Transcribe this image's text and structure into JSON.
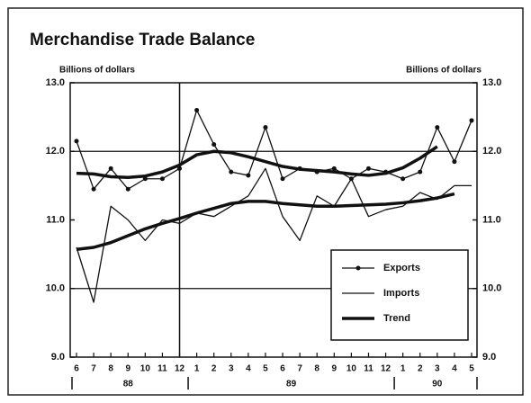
{
  "chart_data": {
    "type": "line",
    "title": "Merchandise Trade Balance",
    "y_label": "Billions of dollars",
    "y2_label": "Billions of dollars",
    "categories": [
      "6",
      "7",
      "8",
      "9",
      "10",
      "11",
      "12",
      "1",
      "2",
      "3",
      "4",
      "5",
      "6",
      "7",
      "8",
      "9",
      "10",
      "11",
      "12",
      "1",
      "2",
      "3",
      "4",
      "5"
    ],
    "x_groups": [
      {
        "label": "88",
        "span": 7
      },
      {
        "label": "89",
        "span": 12
      },
      {
        "label": "90",
        "span": 5
      }
    ],
    "ylim": [
      9,
      13
    ],
    "yticks": [
      {
        "value": 9,
        "label": "9.0"
      },
      {
        "value": 10,
        "label": "10.0"
      },
      {
        "value": 11,
        "label": "11.0"
      },
      {
        "value": 12,
        "label": "12.0"
      },
      {
        "value": 13,
        "label": "13.0"
      }
    ],
    "y2lim": [
      9,
      13
    ],
    "y2ticks": [
      {
        "value": 9,
        "label": "9.0"
      },
      {
        "value": 10,
        "label": "10.0"
      },
      {
        "value": 11,
        "label": "11.0"
      },
      {
        "value": 12,
        "label": "12.0"
      },
      {
        "value": 13,
        "label": "13.0"
      }
    ],
    "grid_lines": [
      10,
      12
    ],
    "legend": "lower right",
    "series": [
      {
        "name": "Exports",
        "color": "#111",
        "style": "dots",
        "values": [
          12.15,
          11.45,
          11.75,
          11.45,
          11.6,
          11.6,
          11.75,
          12.6,
          12.1,
          11.7,
          11.65,
          12.35,
          11.6,
          11.75,
          11.7,
          11.75,
          11.6,
          11.75,
          11.7,
          11.6,
          11.7,
          12.35,
          11.85,
          12.45
        ]
      },
      {
        "name": "Imports",
        "color": "#111",
        "style": "thin",
        "values": [
          10.6,
          9.8,
          11.2,
          11.0,
          10.7,
          11.0,
          10.95,
          11.1,
          11.05,
          11.2,
          11.35,
          11.75,
          11.05,
          10.7,
          11.35,
          11.2,
          11.6,
          11.05,
          11.15,
          11.2,
          11.4,
          11.3,
          11.5,
          11.5
        ]
      },
      {
        "name": "Trend",
        "color": "#111",
        "style": "thick",
        "values": [
          11.68,
          11.67,
          11.63,
          11.62,
          11.64,
          11.7,
          11.8,
          11.95,
          12.0,
          11.98,
          11.92,
          11.85,
          11.78,
          11.74,
          11.72,
          11.7,
          11.67,
          11.65,
          11.68,
          11.76,
          11.9,
          12.07,
          null,
          null
        ]
      },
      {
        "color": "#111",
        "style": "thick",
        "values": [
          10.57,
          10.6,
          10.67,
          10.77,
          10.87,
          10.95,
          11.02,
          11.1,
          11.17,
          11.24,
          11.27,
          11.27,
          11.24,
          11.22,
          11.2,
          11.2,
          11.21,
          11.22,
          11.23,
          11.25,
          11.28,
          11.32,
          11.38,
          null
        ]
      }
    ]
  }
}
